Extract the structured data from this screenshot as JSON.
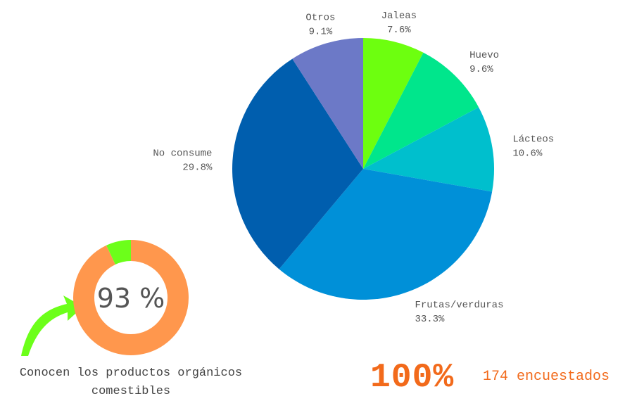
{
  "chart_data": [
    {
      "type": "pie",
      "categories": [
        "Jaleas",
        "Huevo",
        "Lácteos",
        "Frutas/verduras",
        "No consume",
        "Otros"
      ],
      "values": [
        7.6,
        9.6,
        10.6,
        33.3,
        29.8,
        9.1
      ],
      "value_labels": [
        "7.6%",
        "9.6%",
        "10.6%",
        "33.3%",
        "29.8%",
        "9.1%"
      ],
      "colors": [
        "#6dff0f",
        "#00e68c",
        "#00bfcd",
        "#0090d8",
        "#005eae",
        "#6c79c7"
      ]
    },
    {
      "type": "donut",
      "values": [
        93,
        7
      ],
      "colors": [
        "#ff974d",
        "#6cff1a"
      ],
      "center_label": "93 %",
      "caption": "Conocen los productos orgánicos comestibles"
    }
  ],
  "summary": {
    "percent": "100%",
    "respondents": "174 encuestados"
  }
}
